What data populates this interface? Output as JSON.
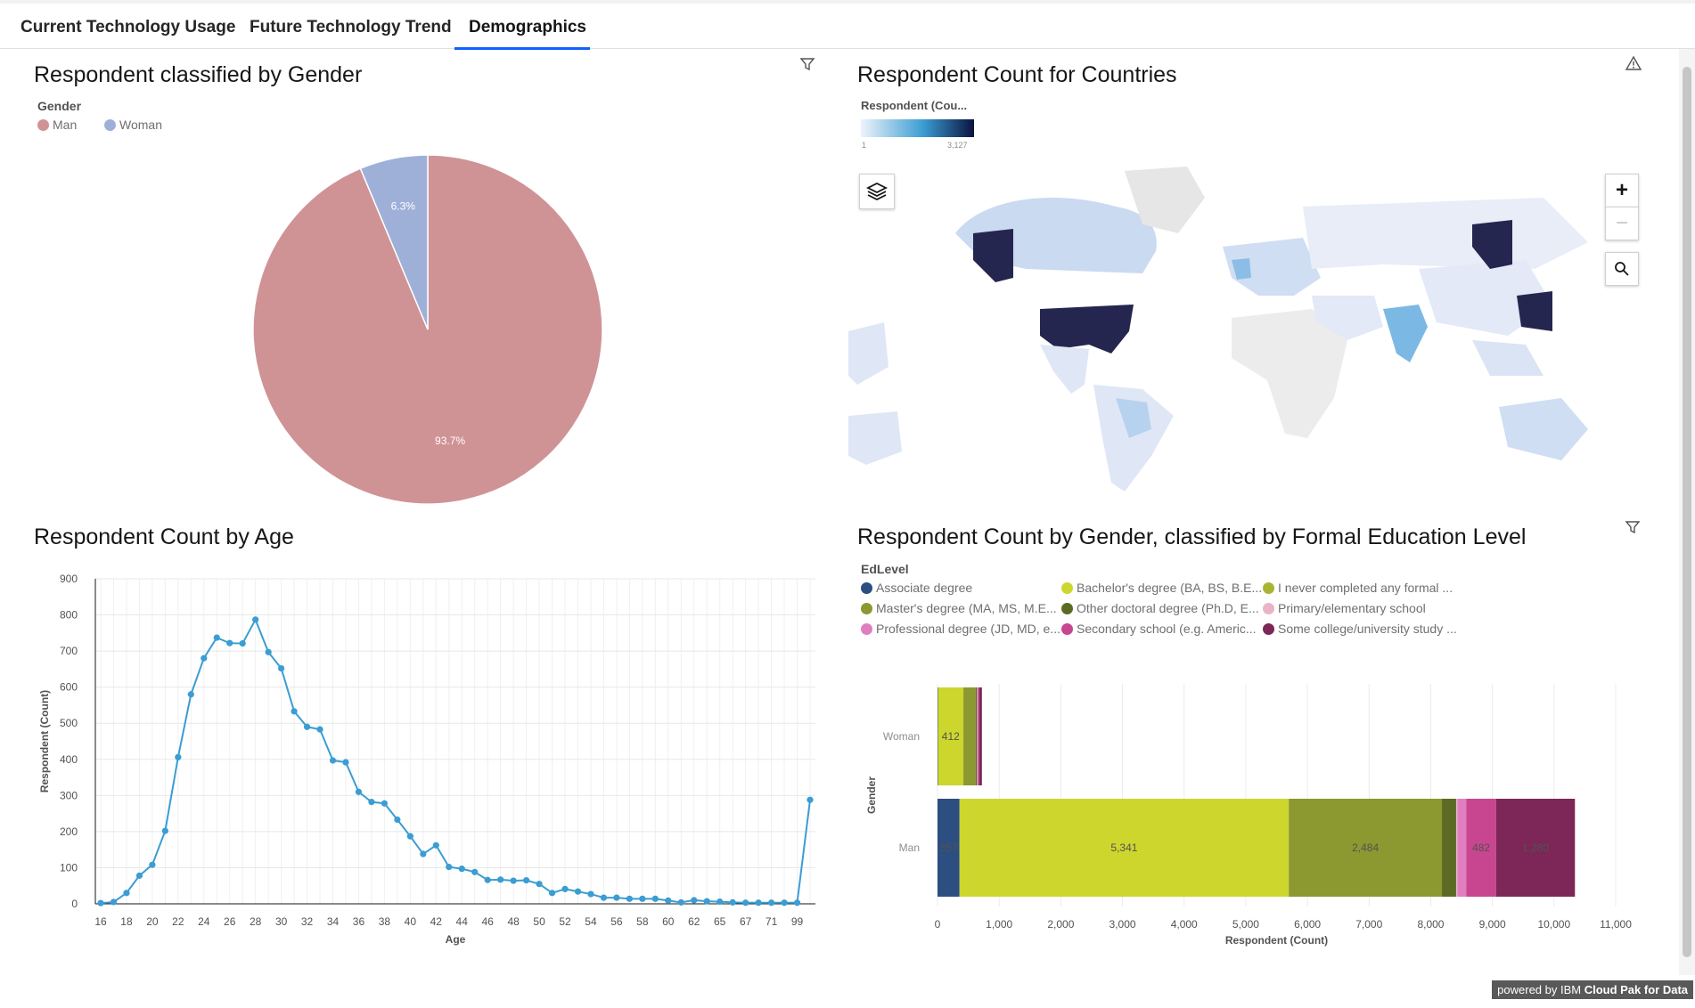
{
  "tabs": [
    {
      "label": "Current Technology Usage"
    },
    {
      "label": "Future Technology Trend"
    },
    {
      "label": "Demographics"
    }
  ],
  "gender_panel": {
    "title": "Respondent classified by Gender",
    "legend_title": "Gender",
    "legend": [
      {
        "label": "Man",
        "color": "#cf9396"
      },
      {
        "label": "Woman",
        "color": "#9fb0d8"
      }
    ]
  },
  "map_panel": {
    "title": "Respondent Count for Countries",
    "legend_title": "Respondent (Cou...",
    "scale_min": "1",
    "scale_max": "3,127"
  },
  "age_panel": {
    "title": "Respondent Count by Age"
  },
  "edu_panel": {
    "title": "Respondent Count by Gender, classified by Formal Education Level",
    "legend_title": "EdLevel"
  },
  "footer": {
    "prefix": "powered by IBM ",
    "brand": "Cloud Pak for Data"
  },
  "chart_data": [
    {
      "type": "pie",
      "title": "Respondent classified by Gender",
      "categories": [
        "Man",
        "Woman"
      ],
      "values": [
        93.7,
        6.3
      ],
      "labels": [
        "93.7%",
        "6.3%"
      ],
      "colors": [
        "#cf9396",
        "#9fb0d8"
      ]
    },
    {
      "type": "line",
      "title": "Respondent Count by Age",
      "xlabel": "Age",
      "ylabel": "Respondent (Count)",
      "ylim": [
        0,
        900
      ],
      "yticks": [
        0,
        100,
        200,
        300,
        400,
        500,
        600,
        700,
        800,
        900
      ],
      "x": [
        "16",
        "17",
        "18",
        "19",
        "20",
        "21",
        "22",
        "23",
        "24",
        "25",
        "26",
        "27",
        "28",
        "29",
        "30",
        "31",
        "32",
        "33",
        "34",
        "35",
        "36",
        "37",
        "38",
        "39",
        "40",
        "41",
        "42",
        "43",
        "44",
        "45",
        "46",
        "47",
        "48",
        "49",
        "50",
        "51",
        "52",
        "53",
        "54",
        "55",
        "56",
        "57",
        "58",
        "59",
        "60",
        "61",
        "62",
        "63",
        "65",
        "66",
        "67",
        "69",
        "71",
        "72",
        "99",
        "100"
      ],
      "xtick_labels": [
        "16",
        "18",
        "20",
        "22",
        "24",
        "26",
        "28",
        "30",
        "32",
        "34",
        "36",
        "38",
        "40",
        "42",
        "44",
        "46",
        "48",
        "50",
        "52",
        "54",
        "56",
        "58",
        "60",
        "62",
        "65",
        "67",
        "71",
        "99"
      ],
      "values": [
        2,
        5,
        30,
        78,
        108,
        202,
        406,
        580,
        680,
        737,
        722,
        721,
        787,
        697,
        652,
        533,
        490,
        483,
        397,
        392,
        310,
        282,
        278,
        233,
        187,
        138,
        162,
        102,
        97,
        88,
        66,
        67,
        64,
        65,
        55,
        30,
        41,
        34,
        27,
        17,
        17,
        14,
        14,
        14,
        9,
        4,
        10,
        7,
        6,
        4,
        3,
        3,
        3,
        3,
        3,
        288
      ],
      "color": "#3b9dd2"
    },
    {
      "type": "bar",
      "orientation": "horizontal",
      "stacked": true,
      "title": "Respondent Count by Gender, classified by Formal Education Level",
      "xlabel": "Respondent (Count)",
      "ylabel": "Gender",
      "xlim": [
        0,
        11000
      ],
      "xticks": [
        "0",
        "1,000",
        "2,000",
        "3,000",
        "4,000",
        "5,000",
        "6,000",
        "7,000",
        "8,000",
        "9,000",
        "10,000",
        "11,000"
      ],
      "categories": [
        "Woman",
        "Man"
      ],
      "series": [
        {
          "name": "Associate degree",
          "color": "#2c4e80",
          "values": [
            8,
            357
          ]
        },
        {
          "name": "Bachelor's degree (BA, BS, B.E...",
          "color": "#cdd62d",
          "values": [
            412,
            5341
          ]
        },
        {
          "name": "I never completed any formal ...",
          "color": "#a8b533",
          "values": [
            0,
            0
          ]
        },
        {
          "name": "Master's degree (MA, MS, M.E...",
          "color": "#8c9830",
          "values": [
            200,
            2484
          ]
        },
        {
          "name": "Other doctoral degree (Ph.D, E...",
          "color": "#5c6a24",
          "values": [
            20,
            230
          ]
        },
        {
          "name": "Primary/elementary school",
          "color": "#eab3c8",
          "values": [
            5,
            20
          ]
        },
        {
          "name": "Professional degree (JD, MD, e...",
          "color": "#e07fbf",
          "values": [
            10,
            145
          ]
        },
        {
          "name": "Secondary school (e.g. Americ...",
          "color": "#c8468f",
          "values": [
            20,
            482
          ]
        },
        {
          "name": "Some college/university study ...",
          "color": "#7d2658",
          "values": [
            45,
            1280
          ]
        }
      ],
      "data_labels": [
        {
          "category": "Woman",
          "series": "Bachelor's degree (BA, BS, B.E...",
          "text": "412"
        },
        {
          "category": "Man",
          "series": "Associate degree",
          "text": "357"
        },
        {
          "category": "Man",
          "series": "Bachelor's degree (BA, BS, B.E...",
          "text": "5,341"
        },
        {
          "category": "Man",
          "series": "Master's degree (MA, MS, M.E...",
          "text": "2,484"
        },
        {
          "category": "Man",
          "series": "Secondary school (e.g. Americ...",
          "text": "482"
        },
        {
          "category": "Man",
          "series": "Some college/university study ...",
          "text": "1,280"
        }
      ]
    }
  ]
}
